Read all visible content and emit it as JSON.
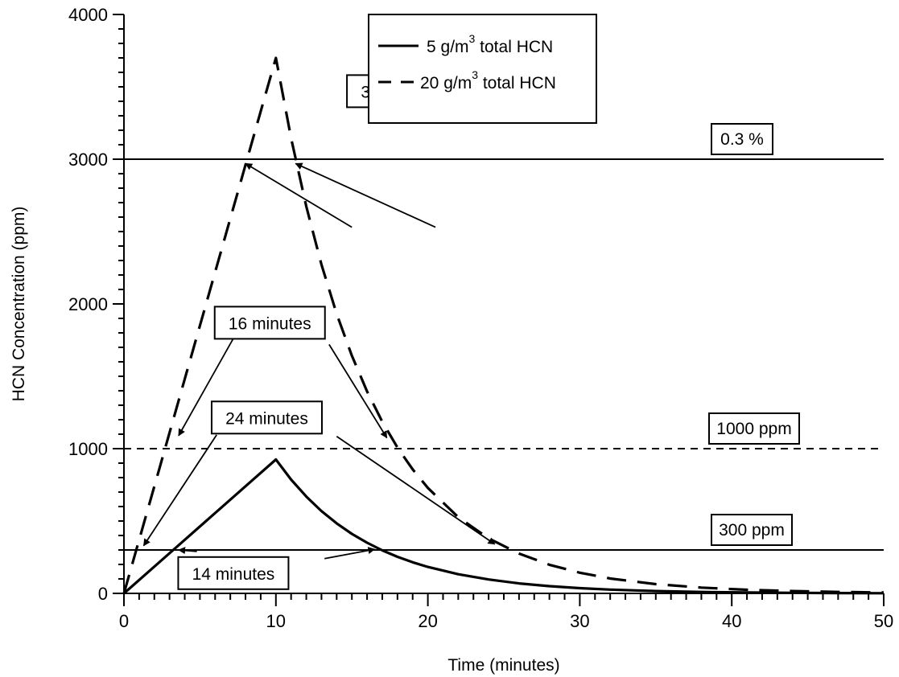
{
  "chart_data": {
    "type": "line",
    "title": "",
    "xlabel": "Time (minutes)",
    "ylabel": "HCN Concentration (ppm)",
    "xlim": [
      0,
      50
    ],
    "ylim": [
      0,
      4000
    ],
    "x_ticks": [
      "0",
      "10",
      "20",
      "30",
      "40",
      "50"
    ],
    "y_ticks": [
      "0",
      "1000",
      "2000",
      "3000",
      "4000"
    ],
    "grid": false,
    "legend_position": "top-center",
    "series": [
      {
        "name": "5 g/m³ total HCN",
        "legend_main": "5 g/m",
        "legend_sup": "3",
        "legend_rest": " total HCN",
        "style": "solid",
        "x": [
          0,
          2,
          4,
          6,
          8,
          10,
          11,
          12,
          13,
          14,
          15,
          16,
          17,
          18,
          19,
          20,
          22,
          24,
          26,
          28,
          30,
          32,
          35,
          38,
          41,
          44,
          47,
          50
        ],
        "y": [
          0,
          185,
          370,
          555,
          740,
          925,
          786,
          669,
          569,
          484,
          411,
          350,
          297,
          253,
          215,
          183,
          132,
          96,
          69,
          50,
          36,
          26,
          16,
          10,
          6,
          4,
          2,
          1
        ]
      },
      {
        "name": "20 g/m³ total HCN",
        "legend_main": "20 g/m",
        "legend_sup": "3",
        "legend_rest": " total HCN",
        "style": "dashed",
        "x": [
          0,
          2,
          4,
          6,
          8,
          10,
          11,
          12,
          13,
          14,
          15,
          16,
          17,
          18,
          19,
          20,
          22,
          24,
          26,
          28,
          30,
          32,
          35,
          38,
          41,
          44,
          47,
          50
        ],
        "y": [
          0,
          740,
          1480,
          2220,
          2960,
          3700,
          3145,
          2673,
          2272,
          1931,
          1642,
          1395,
          1186,
          1008,
          857,
          729,
          526,
          380,
          275,
          198,
          143,
          103,
          64,
          40,
          25,
          16,
          10,
          6
        ]
      }
    ],
    "reference_lines": [
      {
        "y": 3000,
        "label": "0.3 %",
        "style": "solid"
      },
      {
        "y": 1000,
        "label": "1000 ppm",
        "style": "dashed"
      },
      {
        "y": 300,
        "label": "300 ppm",
        "style": "solid"
      }
    ],
    "annotations": [
      {
        "label": "3 minutes",
        "at": [
          18,
          3470
        ],
        "arrows": [
          {
            "from": [
              15,
              2530
            ],
            "to": [
              8,
              2970
            ]
          },
          {
            "from": [
              20.5,
              2530
            ],
            "to": [
              11.3,
              2970
            ]
          }
        ]
      },
      {
        "label": "16 minutes",
        "at": [
          9.6,
          1870
        ],
        "arrows": [
          {
            "from": [
              7.3,
              1780
            ],
            "to": [
              3.6,
              1090
            ]
          },
          {
            "from": [
              13.5,
              1720
            ],
            "to": [
              17.3,
              1075
            ]
          }
        ]
      },
      {
        "label": "24 minutes",
        "at": [
          9.4,
          1215
        ],
        "arrows": [
          {
            "from": [
              6.1,
              1095
            ],
            "to": [
              1.3,
              330
            ]
          },
          {
            "from": [
              14.0,
              1085
            ],
            "to": [
              24.4,
              340
            ]
          }
        ]
      },
      {
        "label": "14 minutes",
        "at": [
          7.2,
          140
        ],
        "arrows": [
          {
            "from": [
              4.8,
              290
            ],
            "to": [
              3.6,
              300
            ]
          },
          {
            "from": [
              13.2,
              240
            ],
            "to": [
              16.5,
              305
            ]
          }
        ]
      }
    ]
  }
}
